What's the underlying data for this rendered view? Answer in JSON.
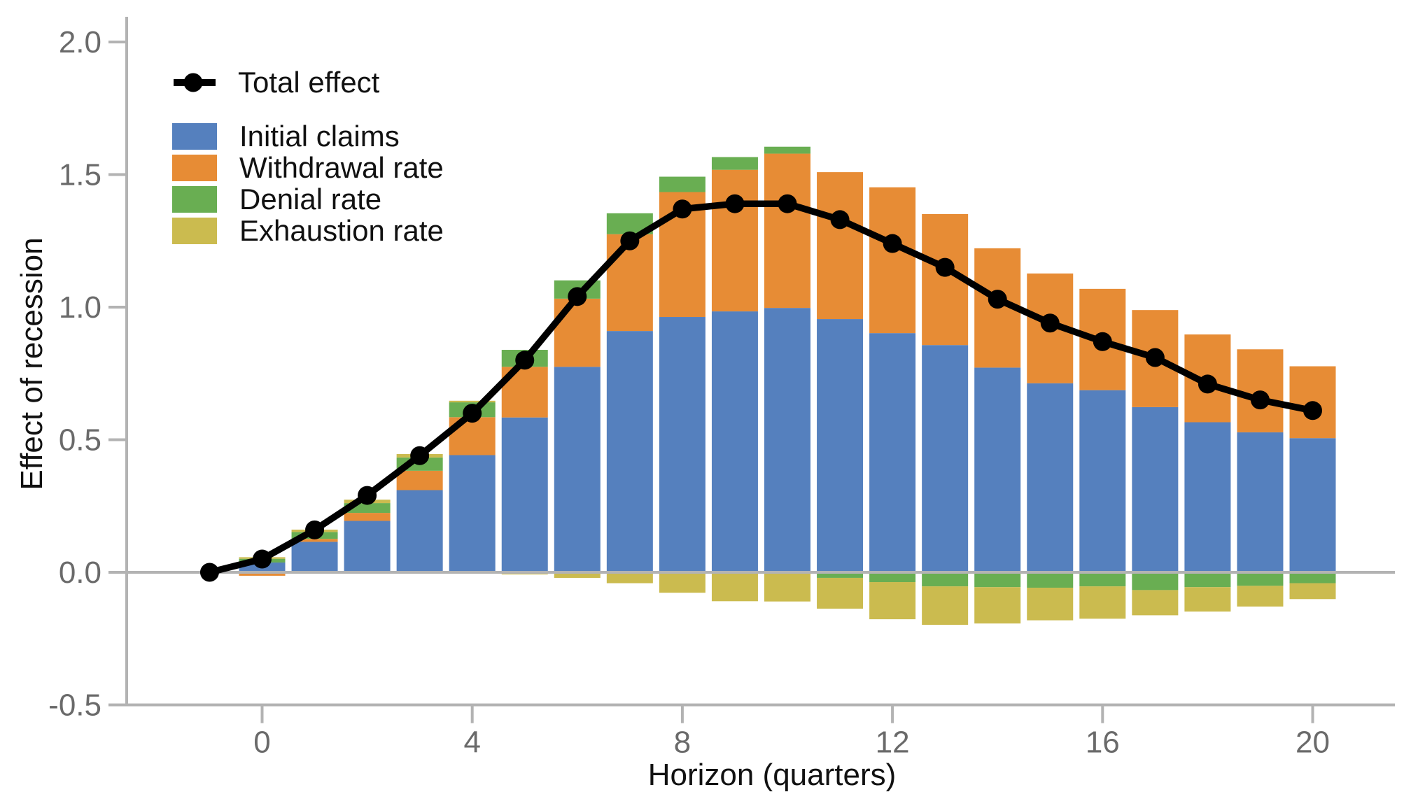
{
  "chart_data": {
    "type": "stacked-bar-with-line",
    "xlabel": "Horizon (quarters)",
    "ylabel": "Effect of recession",
    "x_ticks": [
      0,
      4,
      8,
      12,
      16,
      20
    ],
    "y_tick_labels": [
      "2.0",
      "1.5",
      "1.0",
      "0.5",
      "0.0",
      "-0.5"
    ],
    "y_tick_values": [
      2.0,
      1.5,
      1.0,
      0.5,
      0.0,
      -0.5
    ],
    "ylim": [
      -0.5,
      2.0
    ],
    "grid": false,
    "legend_position": "upper-left-inside",
    "axis_color": "#b3b3b3",
    "tick_label_color": "#6a6a6a",
    "zero_line_color": "#b3b3b3",
    "horizons": [
      0,
      1,
      2,
      3,
      4,
      5,
      6,
      7,
      8,
      9,
      10,
      11,
      12,
      13,
      14,
      15,
      16,
      17,
      18,
      19,
      20
    ],
    "series": [
      {
        "name": "Initial claims",
        "color": "#5580be",
        "values": [
          0.037,
          0.115,
          0.194,
          0.31,
          0.442,
          0.584,
          0.775,
          0.91,
          0.963,
          0.984,
          0.997,
          0.955,
          0.902,
          0.857,
          0.772,
          0.713,
          0.687,
          0.623,
          0.566,
          0.528,
          0.506
        ]
      },
      {
        "name": "Withdrawal rate",
        "color": "#e78c35",
        "values": [
          -0.013,
          0.011,
          0.03,
          0.073,
          0.143,
          0.191,
          0.257,
          0.365,
          0.471,
          0.534,
          0.582,
          0.554,
          0.55,
          0.494,
          0.45,
          0.414,
          0.382,
          0.366,
          0.331,
          0.313,
          0.271
        ]
      },
      {
        "name": "Denial rate",
        "color": "#69ae52",
        "values": [
          0.014,
          0.026,
          0.037,
          0.05,
          0.056,
          0.064,
          0.069,
          0.079,
          0.058,
          0.048,
          0.026,
          -0.021,
          -0.037,
          -0.053,
          -0.056,
          -0.058,
          -0.053,
          -0.067,
          -0.056,
          -0.051,
          -0.041
        ]
      },
      {
        "name": "Exhaustion rate",
        "color": "#cbbb4f",
        "values": [
          0.006,
          0.009,
          0.013,
          0.013,
          0.006,
          -0.008,
          -0.021,
          -0.041,
          -0.077,
          -0.109,
          -0.11,
          -0.116,
          -0.14,
          -0.145,
          -0.137,
          -0.123,
          -0.122,
          -0.095,
          -0.092,
          -0.078,
          -0.06
        ]
      }
    ],
    "line": {
      "name": "Total effect",
      "color": "#000000",
      "x": [
        -1,
        0,
        1,
        2,
        3,
        4,
        5,
        6,
        7,
        8,
        9,
        10,
        11,
        12,
        13,
        14,
        15,
        16,
        17,
        18,
        19,
        20
      ],
      "values": [
        0.0,
        0.05,
        0.16,
        0.29,
        0.44,
        0.6,
        0.8,
        1.04,
        1.25,
        1.37,
        1.39,
        1.39,
        1.33,
        1.24,
        1.15,
        1.03,
        0.94,
        0.87,
        0.81,
        0.71,
        0.65,
        0.61
      ]
    }
  }
}
